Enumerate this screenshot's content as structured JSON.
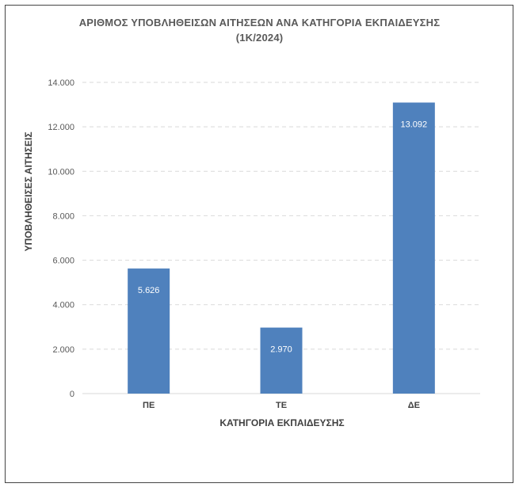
{
  "chart_data": {
    "type": "bar",
    "title": "ΑΡΙΘΜΟΣ ΥΠΟΒΛΗΘΕΙΣΩΝ ΑΙΤΗΣΕΩΝ ΑΝΑ ΚΑΤΗΓΟΡΙΑ ΕΚΠΑΙΔΕΥΣΗΣ",
    "subtitle": "(1Κ/2024)",
    "xlabel": "ΚΑΤΗΓΟΡΙΑ ΕΚΠΑΙΔΕΥΣΗΣ",
    "ylabel": "ΥΠΟΒΛΗΘΕΙΣΕΣ ΑΙΤΗΣΕΙΣ",
    "categories": [
      "ΠΕ",
      "ΤΕ",
      "ΔΕ"
    ],
    "values": [
      5626,
      2970,
      13092
    ],
    "data_labels": [
      "5.626",
      "2.970",
      "13.092"
    ],
    "ylim": [
      0,
      14000
    ],
    "yticks": [
      0,
      2000,
      4000,
      6000,
      8000,
      10000,
      12000,
      14000
    ],
    "ytick_labels": [
      "0",
      "2.000",
      "4.000",
      "6.000",
      "8.000",
      "10.000",
      "12.000",
      "14.000"
    ],
    "grid": true,
    "legend": "none",
    "bar_color": "#4f81bd",
    "grid_color": "#d9d9d9"
  }
}
